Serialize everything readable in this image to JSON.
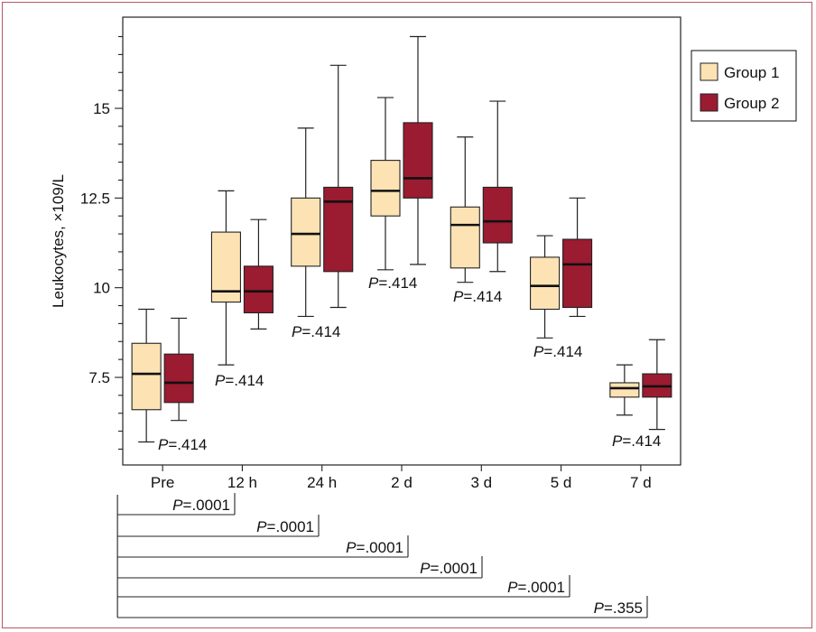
{
  "chart_data": {
    "type": "boxplot",
    "ylabel": "Leukocytes, ×109/L",
    "xlabel": "",
    "ylim": [
      5.5,
      17.5
    ],
    "y_ticks": [
      "7.5",
      "10",
      "12.5",
      "15"
    ],
    "categories": [
      "Pre",
      "12 h",
      "24 h",
      "2 d",
      "3 d",
      "5 d",
      "7 d"
    ],
    "legend_position": "top-right",
    "series": [
      {
        "name": "Group 1",
        "color": "#fde3b4",
        "boxes": [
          {
            "min": 5.7,
            "q1": 6.6,
            "median": 7.6,
            "q3": 8.45,
            "max": 9.4
          },
          {
            "min": 7.85,
            "q1": 9.6,
            "median": 9.9,
            "q3": 11.55,
            "max": 12.7
          },
          {
            "min": 9.2,
            "q1": 10.6,
            "median": 11.5,
            "q3": 12.5,
            "max": 14.45
          },
          {
            "min": 10.5,
            "q1": 12.0,
            "median": 12.7,
            "q3": 13.55,
            "max": 15.3
          },
          {
            "min": 10.15,
            "q1": 10.55,
            "median": 11.75,
            "q3": 12.25,
            "max": 14.2
          },
          {
            "min": 8.6,
            "q1": 9.4,
            "median": 10.05,
            "q3": 10.85,
            "max": 11.45
          },
          {
            "min": 6.45,
            "q1": 6.95,
            "median": 7.2,
            "q3": 7.35,
            "max": 7.85
          }
        ]
      },
      {
        "name": "Group 2",
        "color": "#9b1b30",
        "boxes": [
          {
            "min": 6.3,
            "q1": 6.8,
            "median": 7.35,
            "q3": 8.15,
            "max": 9.15
          },
          {
            "min": 8.85,
            "q1": 9.3,
            "median": 9.9,
            "q3": 10.6,
            "max": 11.9
          },
          {
            "min": 9.45,
            "q1": 10.45,
            "median": 12.4,
            "q3": 12.8,
            "max": 16.2
          },
          {
            "min": 10.65,
            "q1": 12.5,
            "median": 13.05,
            "q3": 14.6,
            "max": 17.0
          },
          {
            "min": 10.45,
            "q1": 11.25,
            "median": 11.85,
            "q3": 12.8,
            "max": 15.2
          },
          {
            "min": 9.2,
            "q1": 9.45,
            "median": 10.65,
            "q3": 11.35,
            "max": 12.5
          },
          {
            "min": 6.05,
            "q1": 6.95,
            "median": 7.25,
            "q3": 7.6,
            "max": 8.55
          }
        ]
      }
    ],
    "group_pvalues": [
      {
        "prefix": "P",
        "value": "=.414"
      },
      {
        "prefix": "P",
        "value": "=.414"
      },
      {
        "prefix": "P",
        "value": "=.414"
      },
      {
        "prefix": "P",
        "value": "=.414"
      },
      {
        "prefix": "P",
        "value": "=.414"
      },
      {
        "prefix": "P",
        "value": "=.414"
      },
      {
        "prefix": "P",
        "value": "=.414"
      }
    ],
    "time_comparisons": [
      {
        "prefix": "P",
        "value": "=.0001",
        "to": "12 h"
      },
      {
        "prefix": "P",
        "value": "=.0001",
        "to": "24 h"
      },
      {
        "prefix": "P",
        "value": "=.0001",
        "to": "2 d"
      },
      {
        "prefix": "P",
        "value": "=.0001",
        "to": "3 d"
      },
      {
        "prefix": "P",
        "value": "=.0001",
        "to": "5 d"
      },
      {
        "prefix": "P",
        "value": "=.355",
        "to": "7 d"
      }
    ]
  }
}
